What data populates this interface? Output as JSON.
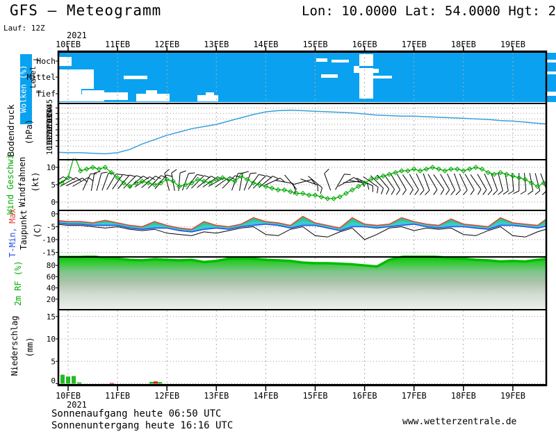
{
  "header": {
    "title": "GFS – Meteogramm",
    "run_label": "Lauf: 12Z",
    "location": "Lon: 10.0000 Lat: 54.0000 Hgt: 2"
  },
  "footer": {
    "sunrise": "Sonnenaufgang heute 06:50 UTC",
    "sunset": "Sonnenuntergang heute 16:16 UTC",
    "website": "www.wetterzentrale.de"
  },
  "x_axis": {
    "year": "2021",
    "days": [
      "10FEB",
      "11FEB",
      "12FEB",
      "13FEB",
      "14FEB",
      "15FEB",
      "16FEB",
      "17FEB",
      "18FEB",
      "19FEB"
    ]
  },
  "colors": {
    "cloud_blue": "#0aa2f0",
    "pressure_line": "#3a9fd8",
    "wind_green": "#00aa00",
    "tmax_red": "#e0483f",
    "tmin_blue": "#2b50e8",
    "dew_black": "#000000",
    "band_upper_green": "#2fc795",
    "band_lower_cyan": "#38c9da",
    "rh_edge_green": "#00bc00",
    "precip_green": "#22bb22",
    "precip_red": "#d42020",
    "grid_gray": "#999999"
  },
  "chart_data": [
    {
      "id": "clouds",
      "type": "cloud-cover",
      "title": "Wolken (%)",
      "level_label": "Level",
      "rows": [
        "Hoch",
        "Mittel",
        "Tief"
      ],
      "cloud_rects": [
        [
          85,
          82,
          18,
          13
        ],
        [
          85,
          100,
          50,
          28
        ],
        [
          85,
          127,
          32,
          19
        ],
        [
          104,
          136,
          16,
          10
        ],
        [
          118,
          130,
          32,
          16
        ],
        [
          148,
          133,
          36,
          11
        ],
        [
          178,
          109,
          34,
          5
        ],
        [
          196,
          135,
          48,
          11
        ],
        [
          210,
          130,
          16,
          7
        ],
        [
          284,
          137,
          30,
          9
        ],
        [
          296,
          133,
          12,
          6
        ],
        [
          455,
          84,
          16,
          5
        ],
        [
          477,
          86,
          25,
          4
        ],
        [
          462,
          107,
          24,
          5
        ],
        [
          517,
          78,
          20,
          64
        ],
        [
          509,
          95,
          8,
          10
        ],
        [
          537,
          99,
          8,
          6
        ],
        [
          536,
          109,
          28,
          4
        ]
      ]
    },
    {
      "id": "pressure",
      "type": "line",
      "title": "Bodendruck",
      "unit": "(hPa)",
      "yticks": [
        1045,
        1040,
        1035,
        1030,
        1025,
        1020,
        1015,
        1010
      ],
      "t0": -0.25,
      "step": 0.25,
      "values": [
        1004.5,
        1004,
        1004,
        1003.5,
        1003,
        1004,
        1007,
        1012,
        1016,
        1020,
        1023,
        1026,
        1028,
        1030,
        1033,
        1036,
        1039,
        1041.5,
        1042.5,
        1043,
        1042.5,
        1042,
        1041.5,
        1041,
        1040.5,
        1039.5,
        1038.5,
        1038,
        1037.5,
        1037.5,
        1037,
        1036.5,
        1036,
        1035.5,
        1035,
        1034.5,
        1033.5,
        1033,
        1032,
        1031,
        1030
      ]
    },
    {
      "id": "wind",
      "type": "line+barbs",
      "title": "Wind Geschwi.",
      "subtitle": "Windfahnen",
      "unit": "(kt)",
      "yticks": [
        10,
        5,
        0
      ],
      "t0": -0.25,
      "step": 0.125,
      "values": [
        6,
        5.5,
        7,
        13.5,
        9,
        9.5,
        10,
        9.5,
        10,
        8.5,
        7,
        5.5,
        4.5,
        5.5,
        6,
        5.5,
        5,
        5.5,
        6.5,
        6,
        4.5,
        5,
        5.5,
        6.5,
        6,
        5.5,
        6.5,
        7,
        6.5,
        6,
        7.5,
        6.5,
        5.5,
        5,
        4.5,
        4,
        3.5,
        3.5,
        3,
        2.5,
        2.5,
        2,
        2,
        1.5,
        1,
        1,
        1.5,
        2.5,
        3.5,
        4.5,
        5.5,
        6.5,
        7,
        7.5,
        8,
        8.5,
        9,
        9,
        9.5,
        9,
        9.5,
        10,
        9.5,
        9,
        9.5,
        9.5,
        9,
        9.5,
        10,
        9.5,
        8.5,
        8,
        8.5,
        8,
        7.5,
        7,
        6.5,
        5.5,
        4.5,
        5.5
      ],
      "barb_angles": [
        55,
        55,
        60,
        65,
        60,
        25,
        10,
        15,
        20,
        30,
        35,
        40,
        45,
        50,
        55,
        50,
        45,
        40,
        -15,
        -10,
        5,
        20,
        35,
        45,
        50,
        55,
        60,
        55,
        45,
        20,
        10,
        20,
        35,
        45,
        50,
        65,
        null,
        100,
        140,
        null,
        75,
        110,
        130,
        null,
        -20,
        null,
        30,
        60,
        85,
        100,
        115,
        125,
        135,
        140,
        145,
        150,
        150,
        145,
        150,
        155,
        160,
        150,
        145,
        150,
        155,
        160,
        155,
        150,
        145,
        150,
        155,
        160,
        165,
        170,
        175,
        180,
        175,
        170,
        165,
        160
      ]
    },
    {
      "id": "temp",
      "type": "band+line",
      "title_min": "T-Min,",
      "title_max": "Max",
      "subtitle": "Taupunkt",
      "unit": "(C)",
      "yticks": [
        0,
        -5,
        -10,
        -15
      ],
      "t0": -0.25,
      "step": 0.25,
      "tmax": [
        -2.5,
        -3,
        -3,
        -3.5,
        -2.5,
        -3.5,
        -4.5,
        -5,
        -3,
        -4.5,
        -5.5,
        -6,
        -3,
        -4.5,
        -5,
        -4,
        -1.5,
        -3,
        -3.5,
        -4.5,
        -1,
        -3.5,
        -4.5,
        -5.5,
        -1.5,
        -4,
        -4.5,
        -4,
        -1.5,
        -3,
        -4,
        -4.5,
        -2,
        -4,
        -4.5,
        -5,
        -1.5,
        -3.5,
        -4,
        -4.5,
        -1
      ],
      "tmin": [
        -3.5,
        -4,
        -4,
        -4.5,
        -4.5,
        -4.5,
        -5.5,
        -6,
        -5.5,
        -5.5,
        -6.5,
        -7,
        -6,
        -5.5,
        -6,
        -5,
        -4.5,
        -4,
        -4.5,
        -5.5,
        -4.5,
        -4.5,
        -5.5,
        -6.5,
        -5,
        -5,
        -5.5,
        -5,
        -4.5,
        -4,
        -5,
        -5.5,
        -5,
        -5,
        -5.5,
        -6,
        -4.5,
        -4.5,
        -5,
        -5.5,
        -4.5
      ],
      "dew": [
        -4,
        -4.5,
        -4.5,
        -5,
        -5.5,
        -5,
        -6,
        -6.5,
        -6,
        -7.5,
        -8,
        -8.5,
        -7,
        -7.5,
        -6.5,
        -5.5,
        -5,
        -8,
        -8.5,
        -6,
        -5,
        -8.5,
        -9,
        -7,
        -5.5,
        -10,
        -8,
        -5.5,
        -5,
        -6.5,
        -5.5,
        -6,
        -5.5,
        -8,
        -8.5,
        -6.5,
        -5,
        -8.5,
        -9,
        -7,
        -5.5
      ]
    },
    {
      "id": "rh",
      "type": "area",
      "title": "2m RF (%)",
      "yticks": [
        80,
        60,
        40,
        20
      ],
      "t0": -0.25,
      "step": 0.25,
      "values": [
        95,
        95,
        95,
        96,
        93,
        92,
        90,
        89,
        91,
        90,
        89,
        90,
        86,
        88,
        92,
        93,
        92,
        90,
        89,
        88,
        85,
        84,
        84,
        83,
        82,
        80,
        78,
        90,
        95,
        97,
        96,
        95,
        93,
        92,
        90,
        89,
        87,
        88,
        87,
        90,
        92
      ]
    },
    {
      "id": "precip",
      "type": "bar",
      "title": "Niederschlag",
      "unit": "(mm)",
      "yticks": [
        15,
        10,
        5,
        0
      ],
      "bars": [
        {
          "x": 87,
          "mm": 2.0,
          "color": "g"
        },
        {
          "x": 95,
          "mm": 1.6,
          "color": "g"
        },
        {
          "x": 103,
          "mm": 1.7,
          "color": "g"
        },
        {
          "x": 111,
          "mm": 0.3,
          "color": "g"
        },
        {
          "x": 158,
          "mm": 0.15,
          "color": "r"
        },
        {
          "x": 215,
          "mm": 0.4,
          "color": "g"
        },
        {
          "x": 221,
          "mm": 0.5,
          "color": "r"
        },
        {
          "x": 227,
          "mm": 0.35,
          "color": "g"
        }
      ]
    }
  ]
}
